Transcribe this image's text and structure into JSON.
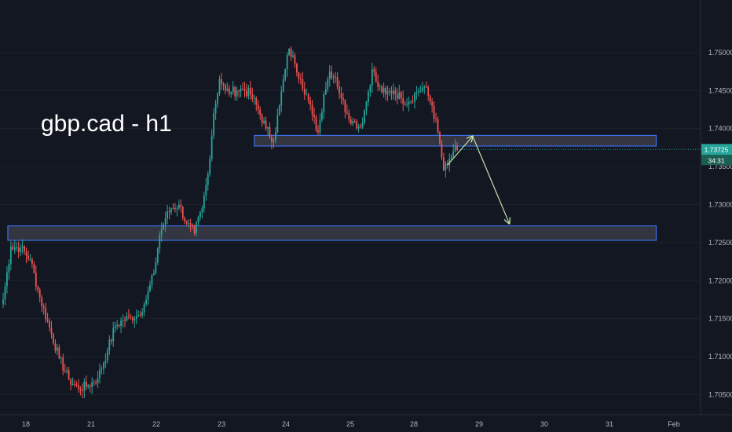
{
  "chart_data": {
    "type": "candlestick",
    "title": "gbp.cad - h1",
    "colors": {
      "background": "#131722",
      "up": "#26a69a",
      "down": "#ef5350",
      "zone_border": "#3d6ee6",
      "zone_fill": "#3a3b47",
      "arrow": "#c5e1a5",
      "axis_text": "#b2b5be",
      "grid": "#1e222d",
      "price_tag": "#26a69a",
      "time_tag": "#1b5e52"
    },
    "ylim": [
      1.7035,
      1.7535
    ],
    "y_ticks": [
      {
        "value": 1.705,
        "label": "1.70500"
      },
      {
        "value": 1.71,
        "label": "1.71000"
      },
      {
        "value": 1.715,
        "label": "1.71500"
      },
      {
        "value": 1.72,
        "label": "1.72000"
      },
      {
        "value": 1.725,
        "label": "1.72500"
      },
      {
        "value": 1.73,
        "label": "1.73000"
      },
      {
        "value": 1.735,
        "label": "1.73500"
      },
      {
        "value": 1.74,
        "label": "1.74000"
      },
      {
        "value": 1.745,
        "label": "1.74500"
      },
      {
        "value": 1.75,
        "label": "1.75000"
      }
    ],
    "x_ticks": [
      "18",
      "21",
      "22",
      "23",
      "24",
      "25",
      "28",
      "29",
      "30",
      "31",
      "Feb"
    ],
    "current_price": {
      "value": 1.73725,
      "label": "1.73725",
      "countdown": "34:31"
    },
    "anchors": [
      [
        0,
        1.7175
      ],
      [
        4,
        1.7245
      ],
      [
        9,
        1.7243
      ],
      [
        14,
        1.7228
      ],
      [
        19,
        1.7178
      ],
      [
        24,
        1.7138
      ],
      [
        29,
        1.7098
      ],
      [
        34,
        1.707
      ],
      [
        39,
        1.7058
      ],
      [
        44,
        1.7062
      ],
      [
        49,
        1.7072
      ],
      [
        54,
        1.7108
      ],
      [
        58,
        1.714
      ],
      [
        62,
        1.7148
      ],
      [
        66,
        1.7152
      ],
      [
        70,
        1.7155
      ],
      [
        74,
        1.7175
      ],
      [
        78,
        1.721
      ],
      [
        81,
        1.726
      ],
      [
        84,
        1.7282
      ],
      [
        87,
        1.7295
      ],
      [
        91,
        1.73
      ],
      [
        95,
        1.7275
      ],
      [
        99,
        1.7262
      ],
      [
        103,
        1.7295
      ],
      [
        106,
        1.734
      ],
      [
        109,
        1.742
      ],
      [
        112,
        1.7465
      ],
      [
        115,
        1.745
      ],
      [
        118,
        1.7448
      ],
      [
        121,
        1.745
      ],
      [
        124,
        1.7452
      ],
      [
        128,
        1.7445
      ],
      [
        132,
        1.7425
      ],
      [
        136,
        1.74
      ],
      [
        140,
        1.7385
      ],
      [
        143,
        1.743
      ],
      [
        146,
        1.7478
      ],
      [
        148,
        1.7505
      ],
      [
        151,
        1.7485
      ],
      [
        154,
        1.7465
      ],
      [
        157,
        1.7445
      ],
      [
        160,
        1.7418
      ],
      [
        163,
        1.7395
      ],
      [
        166,
        1.7445
      ],
      [
        169,
        1.7475
      ],
      [
        172,
        1.7468
      ],
      [
        175,
        1.744
      ],
      [
        178,
        1.742
      ],
      [
        181,
        1.741
      ],
      [
        185,
        1.7402
      ],
      [
        188,
        1.7435
      ],
      [
        191,
        1.7478
      ],
      [
        194,
        1.7455
      ],
      [
        198,
        1.7445
      ],
      [
        202,
        1.745
      ],
      [
        206,
        1.744
      ],
      [
        210,
        1.7435
      ],
      [
        214,
        1.7448
      ],
      [
        218,
        1.7455
      ],
      [
        222,
        1.743
      ],
      [
        225,
        1.7395
      ],
      [
        228,
        1.7345
      ],
      [
        230,
        1.7352
      ],
      [
        233,
        1.737
      ],
      [
        235,
        1.7372
      ]
    ],
    "zones": [
      {
        "x_start": 0,
        "x_end": 338,
        "y_top": 1.7272,
        "y_bottom": 1.7253
      },
      {
        "x_start": 130,
        "x_end": 338,
        "y_top": 1.7391,
        "y_bottom": 1.7377
      }
    ],
    "projection": [
      [
        230,
        1.7352
      ],
      [
        243,
        1.739
      ],
      [
        262,
        1.7275
      ]
    ]
  }
}
